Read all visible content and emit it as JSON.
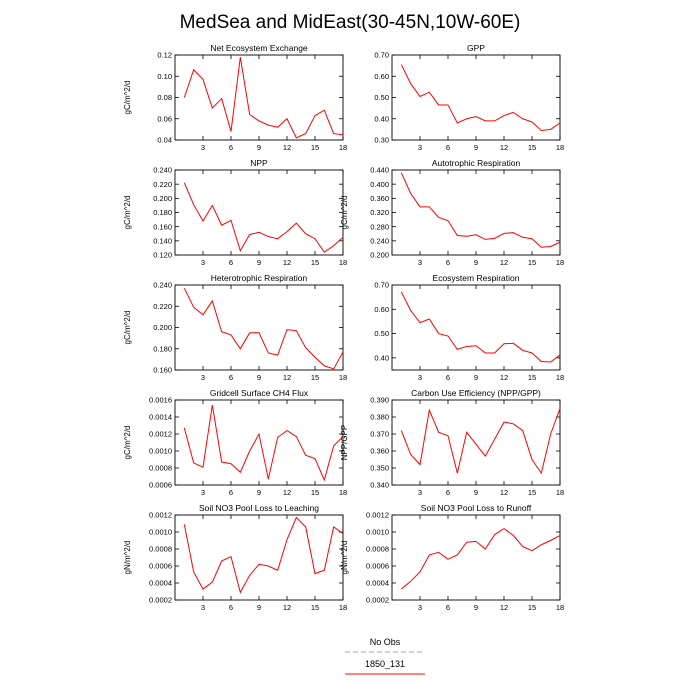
{
  "title": "MedSea and MidEast(30-45N,10W-60E)",
  "colors": {
    "model": "#ff0000",
    "obs": "#9999ff",
    "axis": "#000000"
  },
  "legend": {
    "obs_label": "No Obs",
    "model_label": "1850_131"
  },
  "chart_data": [
    {
      "type": "line",
      "title": "Net Ecosystem Exchange",
      "ylabel": "gC/m^2/d",
      "xlabel": "",
      "xlim": [
        0,
        18
      ],
      "ylim": [
        0.04,
        0.12
      ],
      "xticks": [
        3,
        6,
        9,
        12,
        15,
        18
      ],
      "xtick_labels": [
        "3",
        "6",
        "9",
        "12",
        "15",
        "18"
      ],
      "yticks": [
        0.04,
        0.06,
        0.08,
        0.1,
        0.12
      ],
      "ytick_labels": [
        "0.04",
        "0.06",
        "0.08",
        "0.10",
        "0.12"
      ],
      "series": [
        {
          "name": "1850_131",
          "x": [
            1,
            2,
            3,
            4,
            5,
            6,
            7,
            8,
            9,
            10,
            11,
            12,
            13,
            14,
            15,
            16,
            17,
            18
          ],
          "y": [
            0.08,
            0.106,
            0.097,
            0.07,
            0.079,
            0.048,
            0.118,
            0.064,
            0.058,
            0.054,
            0.052,
            0.06,
            0.042,
            0.046,
            0.063,
            0.068,
            0.046,
            0.045
          ]
        }
      ]
    },
    {
      "type": "line",
      "title": "GPP",
      "ylabel": "",
      "xlabel": "",
      "xlim": [
        0,
        18
      ],
      "ylim": [
        0.3,
        0.7
      ],
      "xticks": [
        3,
        6,
        9,
        12,
        15,
        18
      ],
      "xtick_labels": [
        "3",
        "6",
        "9",
        "12",
        "15",
        "18"
      ],
      "yticks": [
        0.3,
        0.4,
        0.5,
        0.6,
        0.7
      ],
      "ytick_labels": [
        "0.30",
        "0.40",
        "0.50",
        "0.60",
        "0.70"
      ],
      "series": [
        {
          "name": "1850_131",
          "x": [
            1,
            2,
            3,
            4,
            5,
            6,
            7,
            8,
            9,
            10,
            11,
            12,
            13,
            14,
            15,
            16,
            17,
            18
          ],
          "y": [
            0.655,
            0.565,
            0.505,
            0.525,
            0.465,
            0.465,
            0.38,
            0.4,
            0.41,
            0.39,
            0.39,
            0.415,
            0.43,
            0.4,
            0.385,
            0.345,
            0.35,
            0.38
          ]
        }
      ]
    },
    {
      "type": "line",
      "title": "NPP",
      "ylabel": "gC/m^2/d",
      "xlabel": "",
      "xlim": [
        0,
        18
      ],
      "ylim": [
        0.12,
        0.24
      ],
      "xticks": [
        3,
        6,
        9,
        12,
        15,
        18
      ],
      "xtick_labels": [
        "3",
        "6",
        "9",
        "12",
        "15",
        "18"
      ],
      "yticks": [
        0.12,
        0.14,
        0.16,
        0.18,
        0.2,
        0.22,
        0.24
      ],
      "ytick_labels": [
        "0.120",
        "0.140",
        "0.160",
        "0.180",
        "0.200",
        "0.220",
        "0.240"
      ],
      "series": [
        {
          "name": "1850_131",
          "x": [
            1,
            2,
            3,
            4,
            5,
            6,
            7,
            8,
            9,
            10,
            11,
            12,
            13,
            14,
            15,
            16,
            17,
            18
          ],
          "y": [
            0.222,
            0.191,
            0.168,
            0.19,
            0.162,
            0.169,
            0.126,
            0.149,
            0.152,
            0.146,
            0.143,
            0.153,
            0.165,
            0.15,
            0.143,
            0.124,
            0.133,
            0.145
          ]
        }
      ]
    },
    {
      "type": "line",
      "title": "Autotrophic Respiration",
      "ylabel": "gC/m^2/d",
      "xlabel": "",
      "xlim": [
        0,
        18
      ],
      "ylim": [
        0.2,
        0.44
      ],
      "xticks": [
        3,
        6,
        9,
        12,
        15,
        18
      ],
      "xtick_labels": [
        "3",
        "6",
        "9",
        "12",
        "15",
        "18"
      ],
      "yticks": [
        0.2,
        0.24,
        0.28,
        0.32,
        0.36,
        0.4,
        0.44
      ],
      "ytick_labels": [
        "0.200",
        "0.240",
        "0.280",
        "0.320",
        "0.360",
        "0.400",
        "0.440"
      ],
      "series": [
        {
          "name": "1850_131",
          "x": [
            1,
            2,
            3,
            4,
            5,
            6,
            7,
            8,
            9,
            10,
            11,
            12,
            13,
            14,
            15,
            16,
            17,
            18
          ],
          "y": [
            0.432,
            0.374,
            0.336,
            0.336,
            0.306,
            0.297,
            0.255,
            0.253,
            0.257,
            0.244,
            0.247,
            0.261,
            0.263,
            0.25,
            0.246,
            0.222,
            0.224,
            0.236
          ]
        }
      ]
    },
    {
      "type": "line",
      "title": "Heterotrophic Respiration",
      "ylabel": "gC/m^2/d",
      "xlabel": "",
      "xlim": [
        0,
        18
      ],
      "ylim": [
        0.16,
        0.24
      ],
      "xticks": [
        3,
        6,
        9,
        12,
        15,
        18
      ],
      "xtick_labels": [
        "3",
        "6",
        "9",
        "12",
        "15",
        "18"
      ],
      "yticks": [
        0.16,
        0.18,
        0.2,
        0.22,
        0.24
      ],
      "ytick_labels": [
        "0.160",
        "0.180",
        "0.200",
        "0.220",
        "0.240"
      ],
      "series": [
        {
          "name": "1850_131",
          "x": [
            1,
            2,
            3,
            4,
            5,
            6,
            7,
            8,
            9,
            10,
            11,
            12,
            13,
            14,
            15,
            16,
            17,
            18
          ],
          "y": [
            0.237,
            0.219,
            0.212,
            0.225,
            0.196,
            0.193,
            0.18,
            0.195,
            0.195,
            0.176,
            0.174,
            0.198,
            0.197,
            0.181,
            0.172,
            0.164,
            0.161,
            0.177
          ]
        }
      ]
    },
    {
      "type": "line",
      "title": "Ecosystem Respiration",
      "ylabel": "",
      "xlabel": "",
      "xlim": [
        0,
        18
      ],
      "ylim": [
        0.35,
        0.7
      ],
      "xticks": [
        3,
        6,
        9,
        12,
        15,
        18
      ],
      "xtick_labels": [
        "3",
        "6",
        "9",
        "12",
        "15",
        "18"
      ],
      "yticks": [
        0.4,
        0.5,
        0.6,
        0.7
      ],
      "ytick_labels": [
        "0.40",
        "0.50",
        "0.60",
        "0.70"
      ],
      "series": [
        {
          "name": "1850_131",
          "x": [
            1,
            2,
            3,
            4,
            5,
            6,
            7,
            8,
            9,
            10,
            11,
            12,
            13,
            14,
            15,
            16,
            17,
            18
          ],
          "y": [
            0.672,
            0.595,
            0.545,
            0.56,
            0.5,
            0.49,
            0.435,
            0.447,
            0.45,
            0.42,
            0.42,
            0.458,
            0.46,
            0.431,
            0.42,
            0.385,
            0.383,
            0.412
          ]
        }
      ]
    },
    {
      "type": "line",
      "title": "Gridcell Surface CH4 Flux",
      "ylabel": "gC/m^2/d",
      "xlabel": "",
      "xlim": [
        0,
        18
      ],
      "ylim": [
        0.0006,
        0.0016
      ],
      "xticks": [
        3,
        6,
        9,
        12,
        15,
        18
      ],
      "xtick_labels": [
        "3",
        "6",
        "9",
        "12",
        "15",
        "18"
      ],
      "yticks": [
        0.0006,
        0.0008,
        0.001,
        0.0012,
        0.0014,
        0.0016
      ],
      "ytick_labels": [
        "0.0006",
        "0.0008",
        "0.0010",
        "0.0012",
        "0.0014",
        "0.0016"
      ],
      "series": [
        {
          "name": "1850_131",
          "x": [
            1,
            2,
            3,
            4,
            5,
            6,
            7,
            8,
            9,
            10,
            11,
            12,
            13,
            14,
            15,
            16,
            17,
            18
          ],
          "y": [
            0.00127,
            0.00086,
            0.00081,
            0.00154,
            0.00087,
            0.00085,
            0.00075,
            0.001,
            0.0012,
            0.00067,
            0.00116,
            0.00124,
            0.00117,
            0.00095,
            0.00091,
            0.00066,
            0.00106,
            0.00117
          ]
        }
      ]
    },
    {
      "type": "line",
      "title": "Carbon Use Efficiency (NPP/GPP)",
      "ylabel": "NPP/GPP",
      "xlabel": "",
      "xlim": [
        0,
        18
      ],
      "ylim": [
        0.34,
        0.39
      ],
      "xticks": [
        3,
        6,
        9,
        12,
        15,
        18
      ],
      "xtick_labels": [
        "3",
        "6",
        "9",
        "12",
        "15",
        "18"
      ],
      "yticks": [
        0.34,
        0.35,
        0.36,
        0.37,
        0.38,
        0.39
      ],
      "ytick_labels": [
        "0.340",
        "0.350",
        "0.360",
        "0.370",
        "0.380",
        "0.390"
      ],
      "series": [
        {
          "name": "1850_131",
          "x": [
            1,
            2,
            3,
            4,
            5,
            6,
            7,
            8,
            9,
            10,
            11,
            12,
            13,
            14,
            15,
            16,
            17,
            18
          ],
          "y": [
            0.372,
            0.358,
            0.352,
            0.384,
            0.371,
            0.369,
            0.347,
            0.371,
            0.364,
            0.357,
            0.367,
            0.377,
            0.376,
            0.372,
            0.355,
            0.347,
            0.37,
            0.385
          ]
        }
      ]
    },
    {
      "type": "line",
      "title": "Soil NO3 Pool Loss to Leaching",
      "ylabel": "gN/m^2/d",
      "xlabel": "",
      "xlim": [
        0,
        18
      ],
      "ylim": [
        0.0002,
        0.0012
      ],
      "xticks": [
        3,
        6,
        9,
        12,
        15,
        18
      ],
      "xtick_labels": [
        "3",
        "6",
        "9",
        "12",
        "15",
        "18"
      ],
      "yticks": [
        0.0002,
        0.0004,
        0.0006,
        0.0008,
        0.001,
        0.0012
      ],
      "ytick_labels": [
        "0.0002",
        "0.0004",
        "0.0006",
        "0.0008",
        "0.0010",
        "0.0012"
      ],
      "series": [
        {
          "name": "1850_131",
          "x": [
            1,
            2,
            3,
            4,
            5,
            6,
            7,
            8,
            9,
            10,
            11,
            12,
            13,
            14,
            15,
            16,
            17,
            18
          ],
          "y": [
            0.00109,
            0.00053,
            0.00033,
            0.00041,
            0.00066,
            0.00071,
            0.00029,
            0.00049,
            0.00062,
            0.0006,
            0.00055,
            0.00091,
            0.00117,
            0.00106,
            0.00051,
            0.00055,
            0.00106,
            0.00098
          ]
        }
      ]
    },
    {
      "type": "line",
      "title": "Soil NO3 Pool Loss to Runoff",
      "ylabel": "gN/m^2/d",
      "xlabel": "",
      "xlim": [
        0,
        18
      ],
      "ylim": [
        0.0002,
        0.0012
      ],
      "xticks": [
        3,
        6,
        9,
        12,
        15,
        18
      ],
      "xtick_labels": [
        "3",
        "6",
        "9",
        "12",
        "15",
        "18"
      ],
      "yticks": [
        0.0002,
        0.0004,
        0.0006,
        0.0008,
        0.001,
        0.0012
      ],
      "ytick_labels": [
        "0.0002",
        "0.0004",
        "0.0006",
        "0.0008",
        "0.0010",
        "0.0012"
      ],
      "series": [
        {
          "name": "1850_131",
          "x": [
            1,
            2,
            3,
            4,
            5,
            6,
            7,
            8,
            9,
            10,
            11,
            12,
            13,
            14,
            15,
            16,
            17,
            18
          ],
          "y": [
            0.00033,
            0.00042,
            0.00053,
            0.00073,
            0.00076,
            0.00068,
            0.00073,
            0.00088,
            0.00089,
            0.0008,
            0.00097,
            0.00104,
            0.00096,
            0.00083,
            0.00078,
            0.00085,
            0.0009,
            0.00096
          ]
        }
      ]
    }
  ]
}
